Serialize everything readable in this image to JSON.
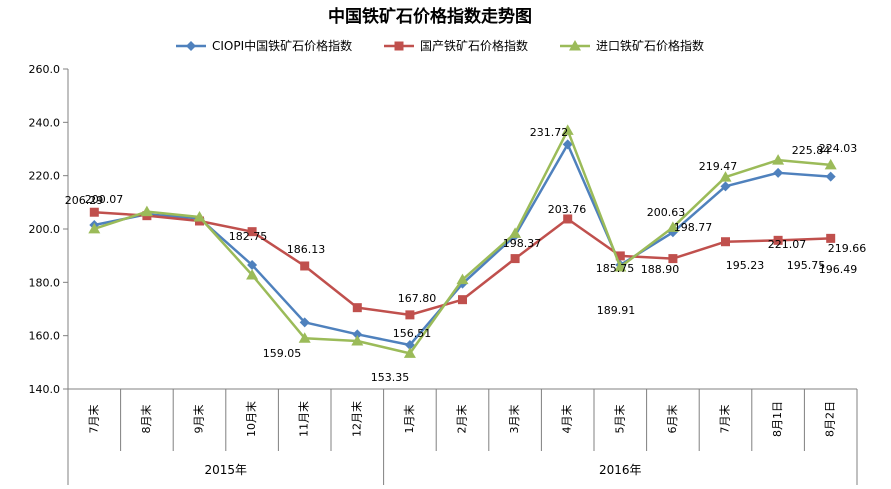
{
  "chart_data": {
    "type": "line",
    "title": "中国铁矿石价格指数走势图",
    "categories": [
      "7月末",
      "8月末",
      "9月末",
      "10月末",
      "11月末",
      "12月末",
      "1月末",
      "2月末",
      "3月末",
      "4月末",
      "5月末",
      "6月末",
      "7月末",
      "8月1日",
      "8月2日"
    ],
    "year_groups": [
      {
        "label": "2015年",
        "start": 0,
        "end": 5
      },
      {
        "label": "2016年",
        "start": 6,
        "end": 14
      }
    ],
    "ylim": [
      140,
      260
    ],
    "yticks": [
      "140.0",
      "160.0",
      "180.0",
      "200.0",
      "220.0",
      "240.0",
      "260.0"
    ],
    "legend_position": "top",
    "grid": false,
    "series": [
      {
        "name": "CIOPI中国铁矿石价格指数",
        "color": "#4f81bd",
        "marker": "diamond",
        "values": [
          201.5,
          205.5,
          204.0,
          186.5,
          165.0,
          160.5,
          156.51,
          179.5,
          197.5,
          231.72,
          186.5,
          198.77,
          216.0,
          221.07,
          219.66
        ]
      },
      {
        "name": "国产铁矿石价格指数",
        "color": "#c0504d",
        "marker": "square",
        "values": [
          206.29,
          205.0,
          203.0,
          199.0,
          186.13,
          170.5,
          167.8,
          173.5,
          188.9,
          203.76,
          189.91,
          188.9,
          195.23,
          195.75,
          196.49
        ]
      },
      {
        "name": "进口铁矿石价格指数",
        "color": "#9bbb59",
        "marker": "triangle",
        "values": [
          200.07,
          206.5,
          204.5,
          182.75,
          159.05,
          158.0,
          153.35,
          181.0,
          198.37,
          237.0,
          185.75,
          200.63,
          219.47,
          225.84,
          224.03
        ]
      }
    ],
    "data_labels": [
      {
        "text": "200.07"
      },
      {
        "text": "206.29"
      },
      {
        "text": "182.75"
      },
      {
        "text": "186.13"
      },
      {
        "text": "159.05"
      },
      {
        "text": "167.80"
      },
      {
        "text": "156.51"
      },
      {
        "text": "153.35"
      },
      {
        "text": "198.37"
      },
      {
        "text": "231.72"
      },
      {
        "text": "203.76"
      },
      {
        "text": "185.75"
      },
      {
        "text": "189.91"
      },
      {
        "text": "188.90"
      },
      {
        "text": "200.63"
      },
      {
        "text": "198.77"
      },
      {
        "text": "219.47"
      },
      {
        "text": "195.23"
      },
      {
        "text": "195.75"
      },
      {
        "text": "225.84"
      },
      {
        "text": "221.07"
      },
      {
        "text": "224.03"
      },
      {
        "text": "219.66"
      },
      {
        "text": "196.49"
      }
    ]
  }
}
